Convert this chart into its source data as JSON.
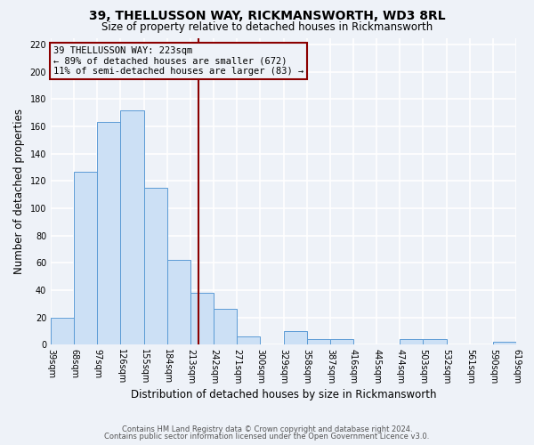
{
  "title": "39, THELLUSSON WAY, RICKMANSWORTH, WD3 8RL",
  "subtitle": "Size of property relative to detached houses in Rickmansworth",
  "xlabel": "Distribution of detached houses by size in Rickmansworth",
  "ylabel": "Number of detached properties",
  "bin_edges": [
    39,
    68,
    97,
    126,
    155,
    184,
    213,
    242,
    271,
    300,
    329,
    358,
    387,
    416,
    445,
    474,
    503,
    532,
    561,
    590,
    619
  ],
  "bar_heights": [
    20,
    127,
    163,
    172,
    115,
    62,
    38,
    26,
    6,
    0,
    10,
    4,
    4,
    0,
    0,
    4,
    4,
    0,
    0,
    2
  ],
  "bar_color": "#cce0f5",
  "bar_edge_color": "#5b9bd5",
  "property_line_x": 223,
  "property_line_color": "#8b0000",
  "annotation_title": "39 THELLUSSON WAY: 223sqm",
  "annotation_line1": "← 89% of detached houses are smaller (672)",
  "annotation_line2": "11% of semi-detached houses are larger (83) →",
  "annotation_box_color": "#8b0000",
  "ylim": [
    0,
    225
  ],
  "yticks": [
    0,
    20,
    40,
    60,
    80,
    100,
    120,
    140,
    160,
    180,
    200,
    220
  ],
  "footer1": "Contains HM Land Registry data © Crown copyright and database right 2024.",
  "footer2": "Contains public sector information licensed under the Open Government Licence v3.0.",
  "bg_color": "#eef2f8",
  "grid_color": "#ffffff",
  "title_fontsize": 10,
  "subtitle_fontsize": 8.5,
  "tick_label_fontsize": 7,
  "axis_label_fontsize": 8.5,
  "footer_fontsize": 6.0
}
